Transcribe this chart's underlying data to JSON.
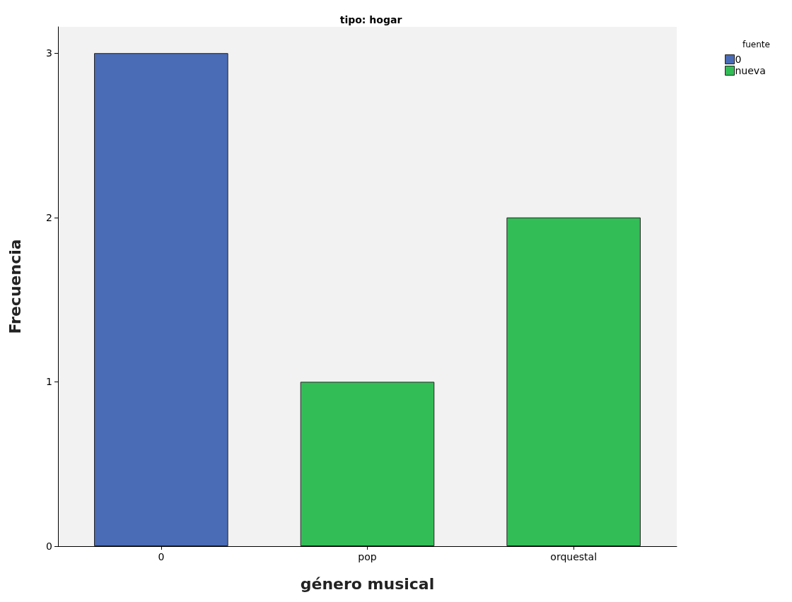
{
  "chart_data": {
    "type": "bar",
    "title": "tipo: hogar",
    "xlabel": "género musical",
    "ylabel": "Frecuencia",
    "legend_title": "fuente",
    "categories": [
      "0",
      "pop",
      "orquestal"
    ],
    "series": [
      {
        "name": "0",
        "color": "#4a6bb5",
        "values": [
          3,
          null,
          null
        ]
      },
      {
        "name": "nueva",
        "color": "#33bd57",
        "values": [
          null,
          1,
          2
        ]
      }
    ],
    "stacked": true,
    "ylim": [
      0,
      3.16
    ],
    "yticks": [
      0,
      1,
      2,
      3
    ],
    "grid": false,
    "legend": "top right"
  }
}
